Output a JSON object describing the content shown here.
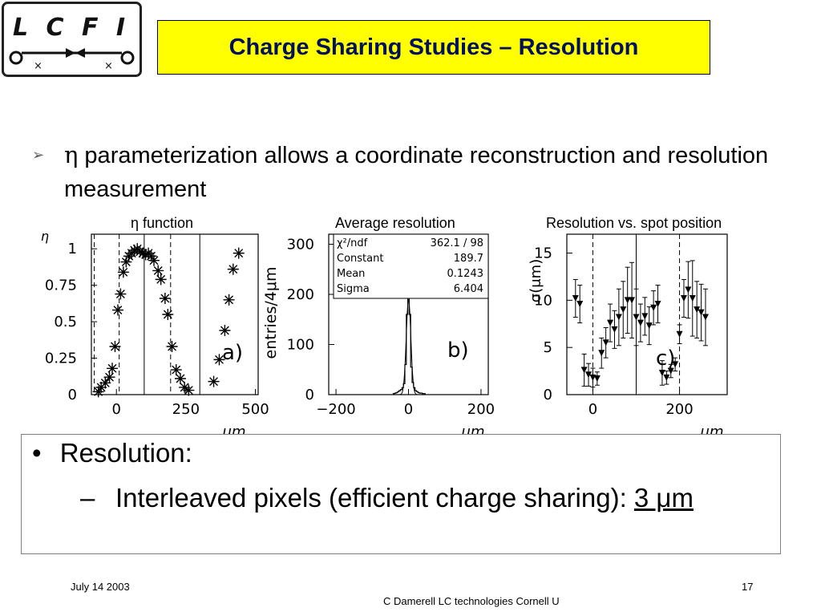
{
  "logo": {
    "text": "L C F I"
  },
  "title": "Charge Sharing Studies – Resolution",
  "bullet1": {
    "symbol": "η",
    "text": " parameterization allows a coordinate reconstruction and resolution measurement"
  },
  "captions": {
    "a": "η function",
    "b": "Average resolution",
    "c": "Resolution vs. spot position"
  },
  "units": {
    "a": "μm",
    "b": "μm",
    "c": "μm"
  },
  "resolution": {
    "bullet": "•",
    "label": "Resolution:",
    "dash": "–",
    "sub_text": "Interleaved pixels (efficient charge sharing): ",
    "value": "3 μm"
  },
  "footer": {
    "date": "July 14 2003",
    "page": "17",
    "center": "C Damerell LC technologies Cornell U"
  },
  "colors": {
    "title_bg": "#ffff00",
    "title_text": "#001060"
  },
  "chart_data": [
    {
      "type": "scatter",
      "title": "η function",
      "panel_label": "a)",
      "xlabel": "μm",
      "ylabel": "η",
      "xlim": [
        -90,
        510
      ],
      "ylim": [
        0,
        1.1
      ],
      "xticks": [
        0,
        250,
        500
      ],
      "yticks": [
        0,
        0.25,
        0.5,
        0.75,
        1
      ],
      "ytick_labels": [
        "0",
        "0.25",
        "0.5",
        "0.75",
        "1"
      ],
      "marker": "asterisk",
      "x": [
        -65,
        -55,
        -40,
        -25,
        -15,
        -5,
        5,
        15,
        25,
        35,
        45,
        55,
        65,
        75,
        85,
        95,
        105,
        115,
        125,
        135,
        150,
        160,
        175,
        185,
        200,
        215,
        230,
        245,
        260,
        350,
        370,
        390,
        405,
        420,
        440
      ],
      "y": [
        0.02,
        0.05,
        0.08,
        0.12,
        0.18,
        0.33,
        0.58,
        0.69,
        0.84,
        0.91,
        0.95,
        0.97,
        0.99,
        1.0,
        0.98,
        0.97,
        0.96,
        0.97,
        0.95,
        0.92,
        0.85,
        0.79,
        0.66,
        0.55,
        0.33,
        0.17,
        0.11,
        0.05,
        0.03,
        0.09,
        0.24,
        0.44,
        0.65,
        0.86,
        0.97
      ],
      "vlines_dashed": [
        -80,
        10,
        195
      ],
      "vlines_solid": [
        100,
        300
      ]
    },
    {
      "type": "histogram",
      "title": "Average resolution",
      "panel_label": "b)",
      "xlabel": "μm",
      "ylabel": "entries/4μm",
      "xlim": [
        -220,
        220
      ],
      "ylim": [
        0,
        320
      ],
      "xticks": [
        -200,
        0,
        200
      ],
      "yticks": [
        0,
        100,
        200,
        300
      ],
      "stats": [
        {
          "label": "χ²/ndf",
          "value": "362.1  /  98"
        },
        {
          "label": "Constant",
          "value": "189.7"
        },
        {
          "label": "Mean",
          "value": "0.1243"
        },
        {
          "label": "Sigma",
          "value": "6.404"
        }
      ],
      "fit": {
        "constant": 189.7,
        "mean": 0.1243,
        "sigma": 6.404
      },
      "bins": [
        -40,
        -36,
        -32,
        -28,
        -24,
        -20,
        -16,
        -12,
        -8,
        -4,
        0,
        4,
        8,
        12,
        16,
        20,
        24,
        28,
        32,
        36,
        40,
        44
      ],
      "counts": [
        2,
        3,
        4,
        6,
        8,
        10,
        14,
        22,
        60,
        160,
        300,
        160,
        55,
        24,
        14,
        8,
        6,
        4,
        3,
        3,
        2,
        2
      ]
    },
    {
      "type": "scatter",
      "title": "Resolution vs. spot position",
      "panel_label": "c)",
      "xlabel": "μm",
      "ylabel": "σ(μm)",
      "xlim": [
        -60,
        310
      ],
      "ylim": [
        0,
        17
      ],
      "xticks": [
        0,
        200
      ],
      "yticks": [
        0,
        5,
        10,
        15
      ],
      "marker": "down-triangle",
      "x": [
        -40,
        -30,
        -20,
        -10,
        0,
        10,
        20,
        30,
        40,
        50,
        60,
        70,
        80,
        90,
        100,
        110,
        120,
        130,
        140,
        150,
        160,
        170,
        180,
        190,
        200,
        210,
        220,
        230,
        240,
        250,
        260
      ],
      "y": [
        10.2,
        9.6,
        2.6,
        2.1,
        1.8,
        1.7,
        4.4,
        5.5,
        7.6,
        6.9,
        8.2,
        9.0,
        10.0,
        10.0,
        8.2,
        7.6,
        8.3,
        7.3,
        9.2,
        9.6,
        2.3,
        1.8,
        2.5,
        3.2,
        6.4,
        10.2,
        11.1,
        10.2,
        9.0,
        8.7,
        8.2
      ],
      "yerr": [
        2,
        2,
        1.7,
        1.2,
        1.0,
        0.7,
        1.6,
        1.6,
        2,
        2,
        3,
        3,
        3.5,
        4,
        3,
        2,
        2,
        2,
        1.8,
        2,
        1.3,
        0.7,
        0.7,
        0.7,
        1,
        2,
        3,
        4,
        3,
        3,
        3
      ],
      "vlines_dashed": [
        0,
        200
      ],
      "vlines_solid": [
        100
      ]
    }
  ]
}
